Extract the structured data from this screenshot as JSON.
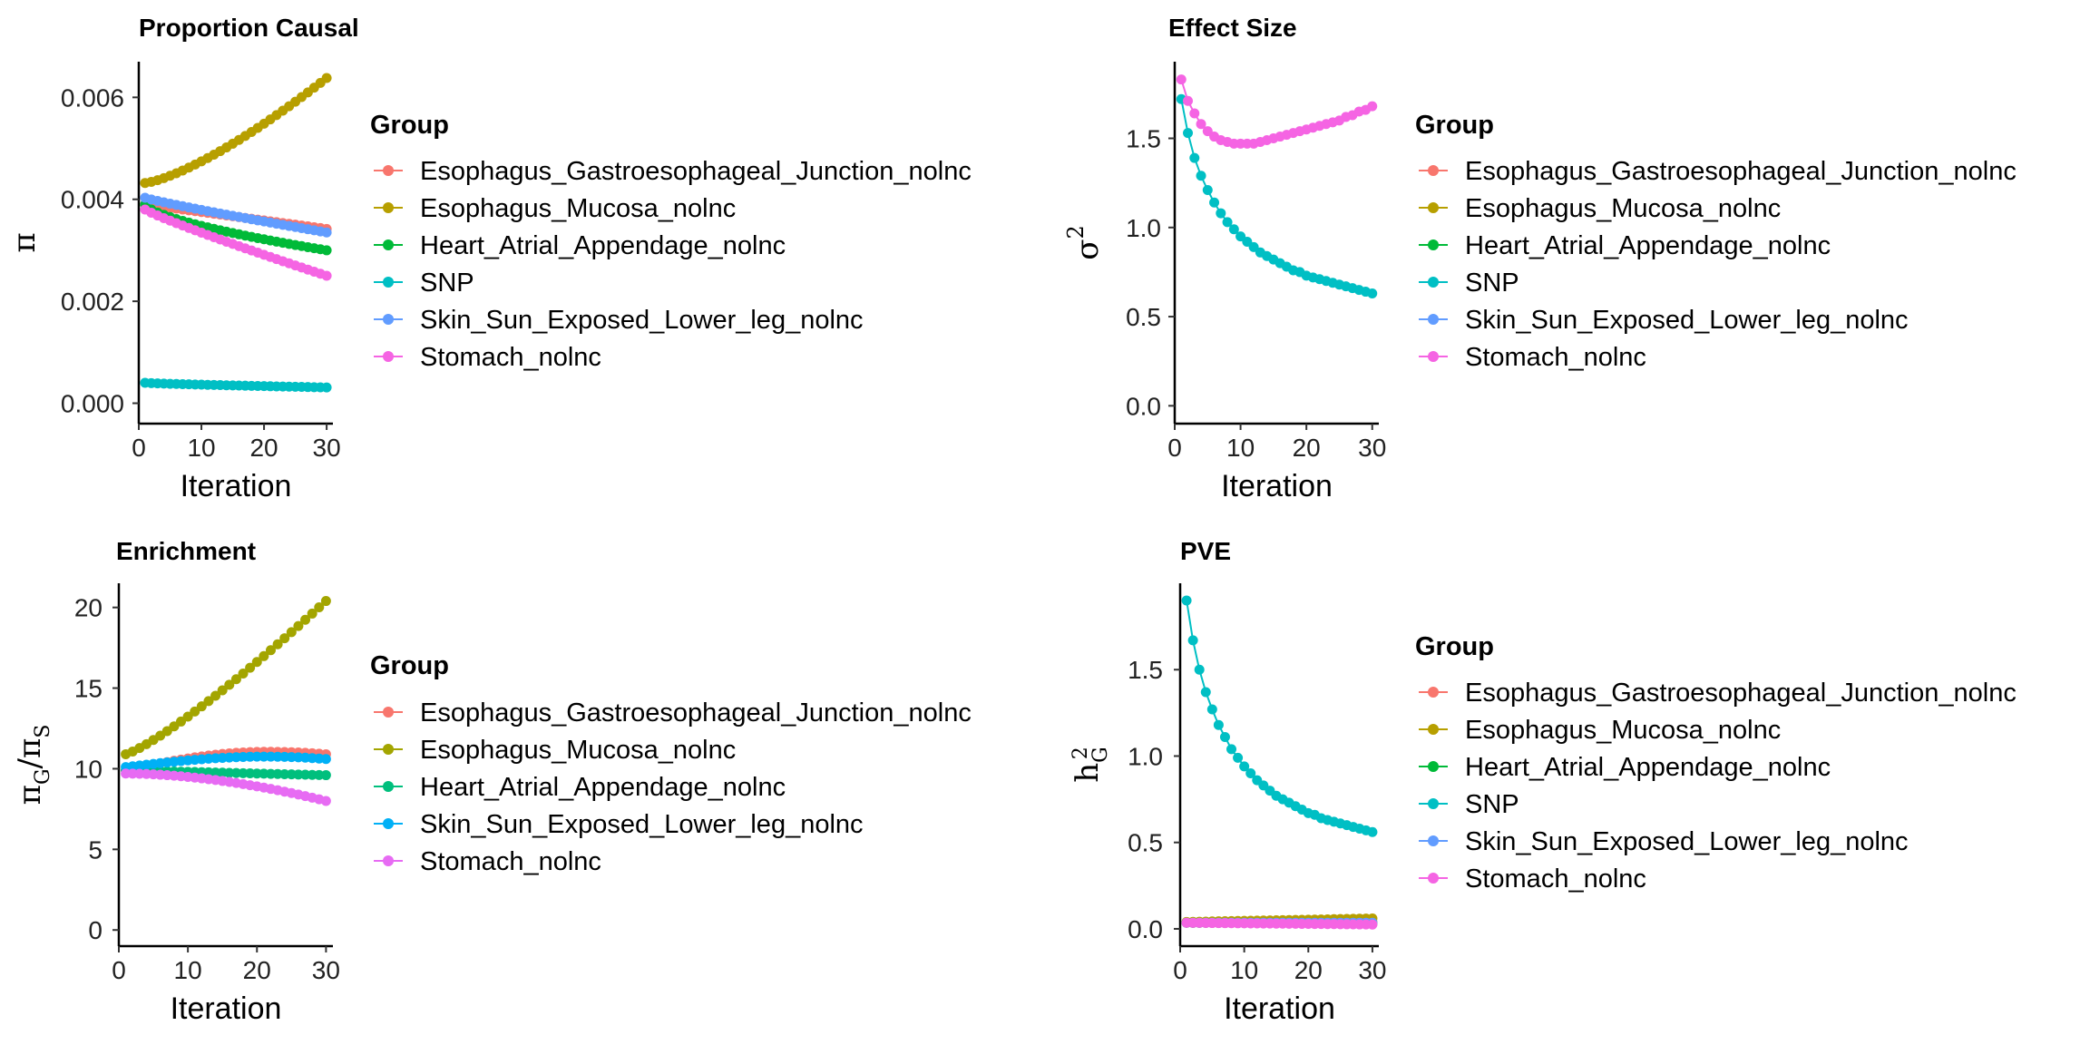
{
  "chart_data": [
    {
      "type": "line",
      "title": "Proportion Causal",
      "xlabel": "Iteration",
      "ylabel": "π",
      "xlim": [
        0,
        31
      ],
      "ylim": [
        -0.0004,
        0.0067
      ],
      "xticks": [
        0,
        10,
        20,
        30
      ],
      "xtick_labels": [
        "0",
        "10",
        "20",
        "30"
      ],
      "yticks": [
        0.0,
        0.002,
        0.004,
        0.006
      ],
      "ytick_labels": [
        "0.000",
        "0.002",
        "0.004",
        "0.006"
      ],
      "legend_title": "Group",
      "legend_labels": [
        "Esophagus_Gastroesophageal_Junction_nolnc",
        "Esophagus_Mucosa_nolnc",
        "Heart_Atrial_Appendage_nolnc",
        "SNP",
        "Skin_Sun_Exposed_Lower_leg_nolnc",
        "Stomach_nolnc"
      ],
      "legend_colors": [
        "#F8766D",
        "#B79F00",
        "#00BA38",
        "#00BFC4",
        "#619CFF",
        "#F564E3"
      ],
      "x_from": 1,
      "x_to": 30,
      "series": [
        {
          "name": "Esophagus_Gastroesophageal_Junction_nolnc",
          "color": "#F8766D",
          "start": 0.0039,
          "end": 0.00342,
          "curve": 1.0
        },
        {
          "name": "Esophagus_Mucosa_nolnc",
          "color": "#B79F00",
          "start": 0.00432,
          "end": 0.00638,
          "curve": 1.35
        },
        {
          "name": "Heart_Atrial_Appendage_nolnc",
          "color": "#00BA38",
          "start": 0.0039,
          "end": 0.003,
          "curve": 0.65
        },
        {
          "name": "SNP",
          "color": "#00BFC4",
          "start": 0.0004,
          "end": 0.00031,
          "curve": 0.8
        },
        {
          "name": "Skin_Sun_Exposed_Lower_leg_nolnc",
          "color": "#619CFF",
          "start": 0.00403,
          "end": 0.00335,
          "curve": 0.9
        },
        {
          "name": "Stomach_nolnc",
          "color": "#F564E3",
          "start": 0.0038,
          "end": 0.0025,
          "curve": 0.9
        }
      ]
    },
    {
      "type": "line",
      "title": "Effect Size",
      "xlabel": "Iteration",
      "ylabel": "σ2",
      "xlim": [
        0,
        31
      ],
      "ylim": [
        -0.1,
        1.93
      ],
      "xticks": [
        0,
        10,
        20,
        30
      ],
      "xtick_labels": [
        "0",
        "10",
        "20",
        "30"
      ],
      "yticks": [
        0.0,
        0.5,
        1.0,
        1.5
      ],
      "ytick_labels": [
        "0.0",
        "0.5",
        "1.0",
        "1.5"
      ],
      "legend_title": "Group",
      "legend_labels": [
        "Esophagus_Gastroesophageal_Junction_nolnc",
        "Esophagus_Mucosa_nolnc",
        "Heart_Atrial_Appendage_nolnc",
        "SNP",
        "Skin_Sun_Exposed_Lower_leg_nolnc",
        "Stomach_nolnc"
      ],
      "legend_colors": [
        "#F8766D",
        "#B79F00",
        "#00BA38",
        "#00BFC4",
        "#619CFF",
        "#F564E3"
      ],
      "series": [
        {
          "name": "SNP",
          "color": "#00BFC4",
          "x": [
            1,
            2,
            3,
            4,
            5,
            6,
            7,
            8,
            9,
            10,
            11,
            12,
            13,
            14,
            15,
            16,
            17,
            18,
            19,
            20,
            21,
            22,
            23,
            24,
            25,
            26,
            27,
            28,
            29,
            30
          ],
          "y": [
            1.72,
            1.53,
            1.39,
            1.29,
            1.21,
            1.14,
            1.08,
            1.03,
            0.99,
            0.95,
            0.92,
            0.89,
            0.86,
            0.84,
            0.82,
            0.8,
            0.78,
            0.76,
            0.75,
            0.73,
            0.72,
            0.71,
            0.7,
            0.69,
            0.68,
            0.67,
            0.66,
            0.65,
            0.64,
            0.63
          ]
        },
        {
          "name": "Stomach_nolnc",
          "color": "#F564E3",
          "x": [
            1,
            2,
            3,
            4,
            5,
            6,
            7,
            8,
            9,
            10,
            11,
            12,
            13,
            14,
            15,
            16,
            17,
            18,
            19,
            20,
            21,
            22,
            23,
            24,
            25,
            26,
            27,
            28,
            29,
            30
          ],
          "y": [
            1.83,
            1.71,
            1.64,
            1.58,
            1.54,
            1.51,
            1.49,
            1.48,
            1.47,
            1.47,
            1.47,
            1.47,
            1.48,
            1.49,
            1.5,
            1.51,
            1.52,
            1.53,
            1.54,
            1.55,
            1.56,
            1.57,
            1.58,
            1.59,
            1.6,
            1.62,
            1.63,
            1.65,
            1.66,
            1.68
          ]
        }
      ]
    },
    {
      "type": "line",
      "title": "Enrichment",
      "xlabel": "Iteration",
      "ylabel": "πG/πS",
      "xlim": [
        0,
        31
      ],
      "ylim": [
        -1.0,
        21.5
      ],
      "xticks": [
        0,
        10,
        20,
        30
      ],
      "xtick_labels": [
        "0",
        "10",
        "20",
        "30"
      ],
      "yticks": [
        0,
        5,
        10,
        15,
        20
      ],
      "ytick_labels": [
        "0",
        "5",
        "10",
        "15",
        "20"
      ],
      "legend_title": "Group",
      "legend_labels": [
        "Esophagus_Gastroesophageal_Junction_nolnc",
        "Esophagus_Mucosa_nolnc",
        "Heart_Atrial_Appendage_nolnc",
        "Skin_Sun_Exposed_Lower_leg_nolnc",
        "Stomach_nolnc"
      ],
      "legend_colors": [
        "#F8766D",
        "#A3A500",
        "#00BF7D",
        "#00B0F6",
        "#E76BF3"
      ],
      "x_from": 1,
      "x_to": 30,
      "series": [
        {
          "name": "Esophagus_Gastroesophageal_Junction_nolnc",
          "color": "#F8766D",
          "start": 9.9,
          "peak": 11.05,
          "end": 10.9,
          "shape": "hump"
        },
        {
          "name": "Esophagus_Mucosa_nolnc",
          "color": "#A3A500",
          "start": 10.9,
          "end": 20.4,
          "curve": 1.2
        },
        {
          "name": "Heart_Atrial_Appendage_nolnc",
          "color": "#00BF7D",
          "start": 9.9,
          "end": 9.6,
          "curve": 1.0
        },
        {
          "name": "Skin_Sun_Exposed_Lower_leg_nolnc",
          "color": "#00B0F6",
          "start": 10.1,
          "peak": 10.75,
          "end": 10.6,
          "shape": "hump"
        },
        {
          "name": "Stomach_nolnc",
          "color": "#E76BF3",
          "start": 9.7,
          "end": 8.0,
          "curve": 1.8
        }
      ]
    },
    {
      "type": "line",
      "title": "PVE",
      "xlabel": "Iteration",
      "ylabel": "hG2",
      "xlim": [
        0,
        31
      ],
      "ylim": [
        -0.1,
        2.0
      ],
      "xticks": [
        0,
        10,
        20,
        30
      ],
      "xtick_labels": [
        "0",
        "10",
        "20",
        "30"
      ],
      "yticks": [
        0.0,
        0.5,
        1.0,
        1.5
      ],
      "ytick_labels": [
        "0.0",
        "0.5",
        "1.0",
        "1.5"
      ],
      "legend_title": "Group",
      "legend_labels": [
        "Esophagus_Gastroesophageal_Junction_nolnc",
        "Esophagus_Mucosa_nolnc",
        "Heart_Atrial_Appendage_nolnc",
        "SNP",
        "Skin_Sun_Exposed_Lower_leg_nolnc",
        "Stomach_nolnc"
      ],
      "legend_colors": [
        "#F8766D",
        "#B79F00",
        "#00BA38",
        "#00BFC4",
        "#619CFF",
        "#F564E3"
      ],
      "series": [
        {
          "name": "SNP",
          "color": "#00BFC4",
          "x": [
            1,
            2,
            3,
            4,
            5,
            6,
            7,
            8,
            9,
            10,
            11,
            12,
            13,
            14,
            15,
            16,
            17,
            18,
            19,
            20,
            21,
            22,
            23,
            24,
            25,
            26,
            27,
            28,
            29,
            30
          ],
          "y": [
            1.9,
            1.67,
            1.5,
            1.37,
            1.27,
            1.18,
            1.11,
            1.04,
            0.99,
            0.94,
            0.9,
            0.86,
            0.83,
            0.8,
            0.77,
            0.75,
            0.73,
            0.71,
            0.69,
            0.67,
            0.66,
            0.64,
            0.63,
            0.62,
            0.61,
            0.6,
            0.59,
            0.58,
            0.57,
            0.56
          ]
        }
      ],
      "flat_series": [
        {
          "name": "Esophagus_Gastroesophageal_Junction_nolnc",
          "color": "#F8766D",
          "start": 0.035,
          "end": 0.04
        },
        {
          "name": "Esophagus_Mucosa_nolnc",
          "color": "#B79F00",
          "start": 0.04,
          "end": 0.06
        },
        {
          "name": "Heart_Atrial_Appendage_nolnc",
          "color": "#00BA38",
          "start": 0.035,
          "end": 0.03
        },
        {
          "name": "Skin_Sun_Exposed_Lower_leg_nolnc",
          "color": "#619CFF",
          "start": 0.035,
          "end": 0.035
        },
        {
          "name": "Stomach_nolnc",
          "color": "#F564E3",
          "start": 0.035,
          "end": 0.025
        }
      ]
    }
  ]
}
